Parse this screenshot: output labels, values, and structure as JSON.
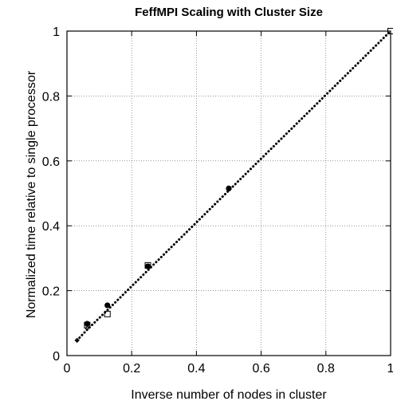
{
  "chart_data": {
    "type": "scatter",
    "title": "FeffMPI Scaling with Cluster Size",
    "xlabel": "Inverse number of nodes in cluster",
    "ylabel": "Normalized time relative to single processor",
    "xlim": [
      0,
      1
    ],
    "ylim": [
      0,
      1
    ],
    "xticks": [
      0,
      0.2,
      0.4,
      0.6,
      0.8,
      1
    ],
    "xtick_labels": [
      "0",
      "0.2",
      "0.4",
      "0.6",
      "0.8",
      "1"
    ],
    "yticks": [
      0,
      0.2,
      0.4,
      0.6,
      0.8,
      1
    ],
    "ytick_labels": [
      "0",
      "0.2",
      "0.4",
      "0.6",
      "0.8",
      "1"
    ],
    "grid": true,
    "series": [
      {
        "marker": "filled-circle",
        "points": [
          {
            "x": 0.0625,
            "y": 0.098
          },
          {
            "x": 0.125,
            "y": 0.155
          },
          {
            "x": 0.25,
            "y": 0.275
          },
          {
            "x": 0.5,
            "y": 0.515
          }
        ]
      },
      {
        "marker": "open-square",
        "points": [
          {
            "x": 0.0625,
            "y": 0.094
          },
          {
            "x": 0.125,
            "y": 0.128
          },
          {
            "x": 0.25,
            "y": 0.278
          },
          {
            "x": 1.0,
            "y": 1.0
          }
        ]
      },
      {
        "marker": "small-diamond",
        "points": [
          {
            "x": 0.03125,
            "y": 0.047
          },
          {
            "x": 0.0625,
            "y": 0.084
          }
        ]
      },
      {
        "style": "dotted-line",
        "points": [
          {
            "x": 0.03125,
            "y": 0.047
          },
          {
            "x": 0.0625,
            "y": 0.08
          },
          {
            "x": 0.125,
            "y": 0.14
          },
          {
            "x": 1.0,
            "y": 1.0
          }
        ]
      }
    ]
  }
}
